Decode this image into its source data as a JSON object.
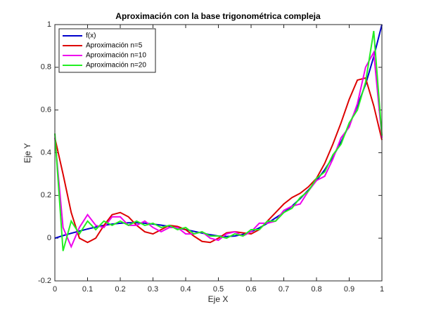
{
  "chart_data": {
    "type": "line",
    "title": "Aproximación con la base trigonométrica compleja",
    "x_label": "Eje X",
    "y_label": "Eje Y",
    "x": [
      0,
      0.025,
      0.05,
      0.075,
      0.1,
      0.125,
      0.15,
      0.175,
      0.2,
      0.225,
      0.25,
      0.275,
      0.3,
      0.325,
      0.35,
      0.375,
      0.4,
      0.425,
      0.45,
      0.475,
      0.5,
      0.525,
      0.55,
      0.575,
      0.6,
      0.625,
      0.65,
      0.675,
      0.7,
      0.725,
      0.75,
      0.775,
      0.8,
      0.825,
      0.85,
      0.875,
      0.9,
      0.925,
      0.95,
      0.975,
      1
    ],
    "series": [
      {
        "name": "f(x)",
        "color": "#0000cc",
        "values": [
          0,
          0.012,
          0.023,
          0.033,
          0.043,
          0.052,
          0.06,
          0.066,
          0.07,
          0.072,
          0.072,
          0.07,
          0.066,
          0.061,
          0.055,
          0.048,
          0.04,
          0.032,
          0.024,
          0.016,
          0.01,
          0.008,
          0.01,
          0.018,
          0.03,
          0.048,
          0.07,
          0.095,
          0.12,
          0.15,
          0.185,
          0.225,
          0.27,
          0.32,
          0.38,
          0.45,
          0.53,
          0.62,
          0.72,
          0.85,
          1
        ]
      },
      {
        "name": "Aproximación n=5",
        "color": "#dd0000",
        "values": [
          0.47,
          0.3,
          0.12,
          0,
          -0.02,
          0,
          0.06,
          0.11,
          0.12,
          0.1,
          0.06,
          0.03,
          0.02,
          0.04,
          0.06,
          0.055,
          0.04,
          0.01,
          -0.015,
          -0.02,
          0,
          0.025,
          0.03,
          0.025,
          0.02,
          0.04,
          0.08,
          0.12,
          0.16,
          0.19,
          0.21,
          0.24,
          0.28,
          0.35,
          0.44,
          0.54,
          0.65,
          0.74,
          0.75,
          0.62,
          0.46
        ]
      },
      {
        "name": "Aproximación n=10",
        "color": "#ee00ee",
        "values": [
          0.47,
          0.05,
          -0.04,
          0.05,
          0.11,
          0.06,
          0.05,
          0.1,
          0.1,
          0.06,
          0.06,
          0.08,
          0.05,
          0.03,
          0.05,
          0.05,
          0.02,
          0.02,
          0.03,
          0,
          -0.01,
          0.02,
          0.03,
          0.01,
          0.03,
          0.07,
          0.07,
          0.08,
          0.13,
          0.15,
          0.16,
          0.22,
          0.27,
          0.29,
          0.37,
          0.47,
          0.52,
          0.63,
          0.8,
          0.87,
          0.47
        ]
      },
      {
        "name": "Aproximación n=20",
        "color": "#22ee22",
        "values": [
          0.49,
          -0.06,
          0.08,
          0.02,
          0.08,
          0.04,
          0.08,
          0.06,
          0.08,
          0.06,
          0.08,
          0.06,
          0.07,
          0.05,
          0.06,
          0.04,
          0.05,
          0.02,
          0.03,
          0.01,
          0.01,
          0,
          0.02,
          0.01,
          0.04,
          0.04,
          0.08,
          0.08,
          0.12,
          0.14,
          0.19,
          0.22,
          0.28,
          0.31,
          0.39,
          0.44,
          0.54,
          0.6,
          0.73,
          0.97,
          0.48
        ]
      }
    ],
    "xlim": [
      0,
      1
    ],
    "ylim": [
      -0.2,
      1
    ],
    "xticks": [
      0,
      0.1,
      0.2,
      0.3,
      0.4,
      0.5,
      0.6,
      0.7,
      0.8,
      0.9,
      1
    ],
    "yticks": [
      -0.2,
      0,
      0.2,
      0.4,
      0.6,
      0.8,
      1
    ],
    "legend": "top-left",
    "grid": false
  }
}
